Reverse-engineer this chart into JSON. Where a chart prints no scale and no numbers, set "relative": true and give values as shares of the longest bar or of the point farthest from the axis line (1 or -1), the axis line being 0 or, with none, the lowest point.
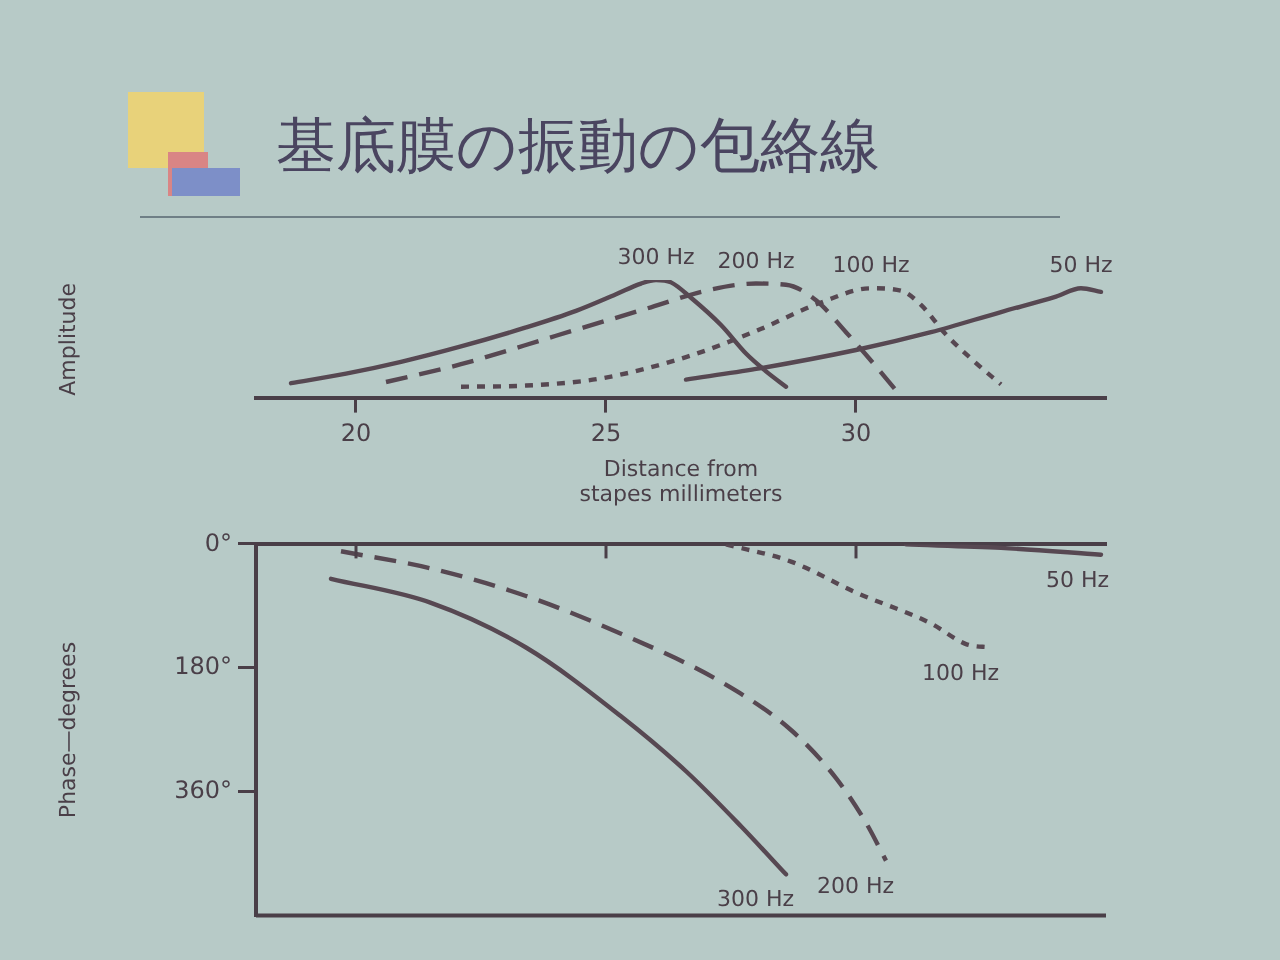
{
  "chart_data": [
    {
      "type": "line",
      "title": "基底膜の振動の包絡線",
      "ylabel": "Amplitude",
      "xlabel": "Distance from stapes millimeters",
      "relative": true,
      "xlim": [
        18,
        35
      ],
      "xticks": [
        20,
        25,
        30
      ],
      "series": [
        {
          "name": "300 Hz",
          "color": "#574852",
          "line_style": "solid",
          "x": [
            18.7,
            19.8,
            20.9,
            22.1,
            23.4,
            24.4,
            25.2,
            25.7,
            26.0,
            26.3,
            26.7,
            27.3,
            27.8,
            28.2,
            28.6
          ],
          "values": [
            0.13,
            0.21,
            0.31,
            0.44,
            0.6,
            0.74,
            0.88,
            0.97,
            1,
            0.98,
            0.85,
            0.62,
            0.38,
            0.23,
            0.1
          ]
        },
        {
          "name": "200 Hz",
          "color": "#574852",
          "line_style": "dashed",
          "x": [
            20.6,
            22.1,
            24.0,
            25.9,
            27.0,
            28.0,
            28.6,
            29.2,
            29.8,
            30.2,
            30.8
          ],
          "values": [
            0.14,
            0.29,
            0.53,
            0.77,
            0.91,
            0.97,
            0.96,
            0.83,
            0.56,
            0.37,
            0.07
          ]
        },
        {
          "name": "100 Hz",
          "color": "#574852",
          "line_style": "dotted",
          "x": [
            22.1,
            23.4,
            24.9,
            26.6,
            28.0,
            29.3,
            30.3,
            30.9,
            31.3,
            31.8,
            32.4,
            32.9
          ],
          "values": [
            0.1,
            0.11,
            0.17,
            0.35,
            0.57,
            0.81,
            0.93,
            0.91,
            0.79,
            0.54,
            0.3,
            0.12
          ]
        },
        {
          "name": "50 Hz",
          "color": "#574852",
          "line_style": "solid",
          "x": [
            26.6,
            28.0,
            30.0,
            31.5,
            32.9,
            34.0,
            34.5,
            34.9
          ],
          "values": [
            0.16,
            0.25,
            0.41,
            0.56,
            0.73,
            0.86,
            0.93,
            0.9
          ]
        }
      ]
    },
    {
      "type": "line",
      "ylabel": "Phase—degrees",
      "xlim": [
        18,
        35
      ],
      "xticks": [
        20,
        25,
        30
      ],
      "ylim": [
        540,
        0
      ],
      "yticks": [
        {
          "value": 0,
          "label": "0°"
        },
        {
          "value": 180,
          "label": "180°"
        },
        {
          "value": 360,
          "label": "360°"
        }
      ],
      "tick_labels": "y",
      "series": [
        {
          "name": "300 Hz",
          "color": "#574852",
          "line_style": "solid",
          "x": [
            19.5,
            21.5,
            23.4,
            25.3,
            26.6,
            27.7,
            28.6
          ],
          "values": [
            50,
            85,
            150,
            250,
            330,
            410,
            480
          ]
        },
        {
          "name": "200 Hz",
          "color": "#574852",
          "line_style": "dashed",
          "x": [
            19.7,
            21.5,
            23.4,
            25.3,
            27.3,
            28.7,
            29.6,
            30.2,
            30.6
          ],
          "values": [
            10,
            35,
            75,
            130,
            200,
            270,
            340,
            405,
            460
          ]
        },
        {
          "name": "100 Hz",
          "color": "#574852",
          "line_style": "dotted",
          "x": [
            27.4,
            28.7,
            30.0,
            31.5,
            32.2,
            32.7
          ],
          "values": [
            0,
            25,
            70,
            115,
            145,
            150
          ]
        },
        {
          "name": "50 Hz",
          "color": "#574852",
          "line_style": "solid",
          "x": [
            31.0,
            32.9,
            34.9
          ],
          "values": [
            0,
            5,
            15
          ]
        }
      ]
    }
  ]
}
